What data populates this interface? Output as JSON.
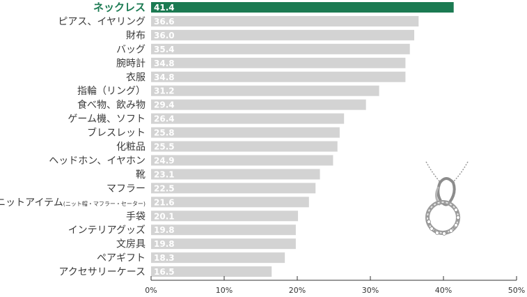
{
  "chart_data": {
    "type": "bar",
    "orientation": "horizontal",
    "categories": [
      "ネックレス",
      "ピアス、イヤリング",
      "財布",
      "バッグ",
      "腕時計",
      "衣服",
      "指輪（リング）",
      "食べ物、飲み物",
      "ゲーム機、ソフト",
      "ブレスレット",
      "化粧品",
      "ヘッドホン、イヤホン",
      "靴",
      "マフラー",
      "ニットアイテム",
      "手袋",
      "インテリアグッズ",
      "文房具",
      "ペアギフト",
      "アクセサリーケース"
    ],
    "category_notes": {
      "ニットアイテム": "(ニット帽・マフラー・セーター)"
    },
    "values": [
      41.4,
      36.6,
      36.0,
      35.4,
      34.8,
      34.8,
      31.2,
      29.4,
      26.4,
      25.8,
      25.5,
      24.9,
      23.1,
      22.5,
      21.6,
      20.1,
      19.8,
      19.8,
      18.3,
      16.5
    ],
    "value_labels": [
      "41.4",
      "36.6",
      "36.0",
      "35.4",
      "34.8",
      "34.8",
      "31.2",
      "29.4",
      "26.4",
      "25.8",
      "25.5",
      "24.9",
      "23.1",
      "22.5",
      "21.6",
      "20.1",
      "19.8",
      "19.8",
      "18.3",
      "16.5"
    ],
    "highlight_index": 0,
    "xlim": [
      0,
      50
    ],
    "xticks": [
      "0%",
      "10%",
      "20%",
      "30%",
      "40%",
      "50%"
    ],
    "grid": false,
    "legend": "none",
    "colors": {
      "bar": "#d3d3d3",
      "highlight_bar": "#1b7a52",
      "highlight_label": "#1b7a52",
      "value_text": "#ffffff",
      "axis": "#333333"
    },
    "illustration": "necklace-pendant-icon"
  }
}
